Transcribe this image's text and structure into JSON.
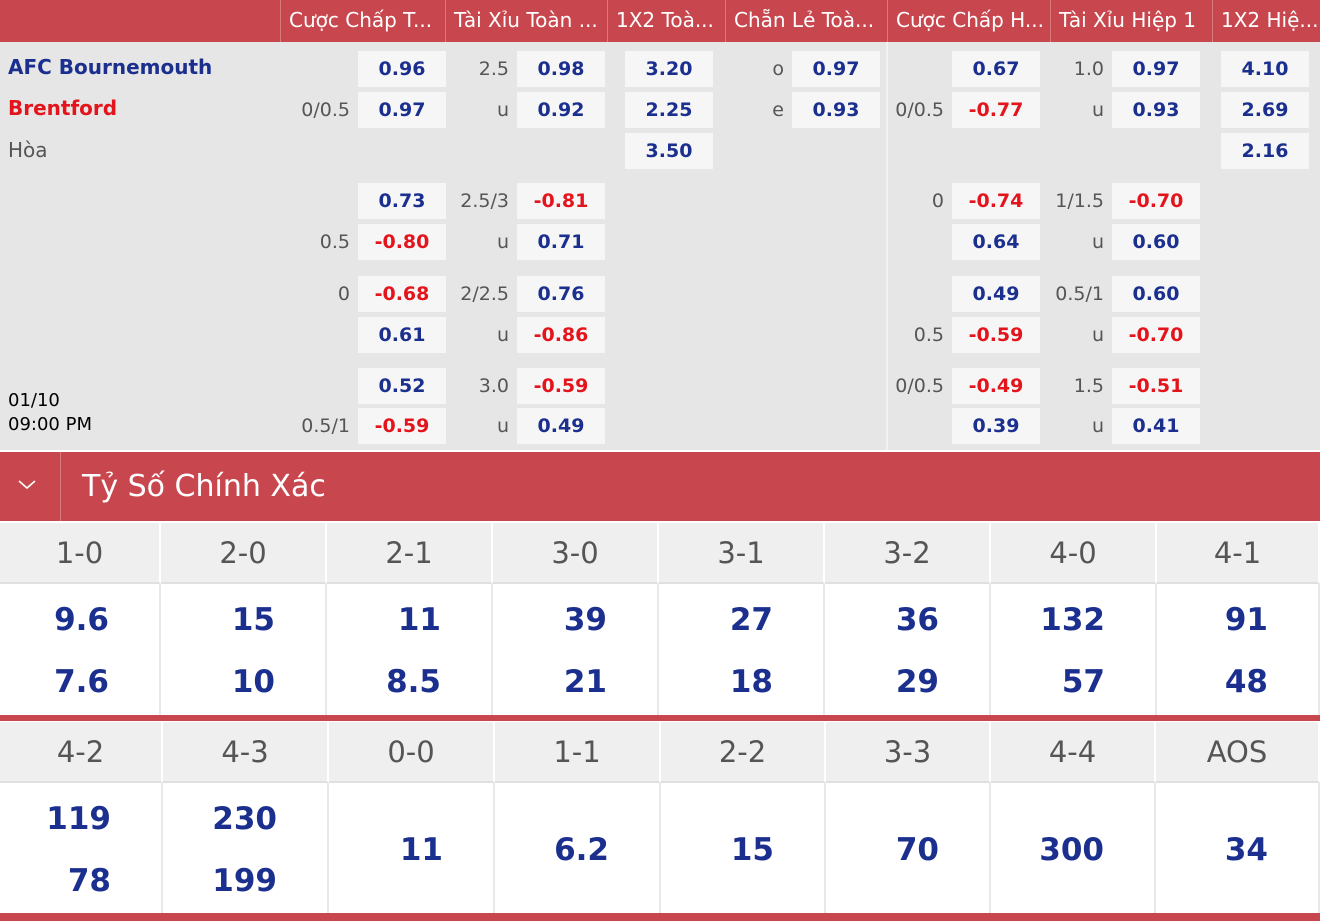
{
  "match": {
    "home": "AFC Bournemouth",
    "away": "Brentford",
    "draw": "Hòa",
    "date": "01/10",
    "time": "09:00 PM"
  },
  "odds": {
    "headers": [
      "Cược Chấp T...",
      "Tài Xỉu Toàn ...",
      "1X2 Toà...",
      "Chẵn Lẻ Toà...",
      "Cược Chấp H...",
      "Tài Xỉu Hiệp 1",
      "1X2 Hiệ..."
    ],
    "rows": [
      [
        {
          "odds": "0.96"
        },
        {
          "line": "2.5",
          "odds": "0.98"
        },
        {
          "odds": "3.20"
        },
        {
          "line": "o",
          "odds": "0.97"
        },
        {
          "odds": "0.67"
        },
        {
          "line": "1.0",
          "odds": "0.97"
        },
        {
          "odds": "4.10"
        }
      ],
      [
        {
          "line": "0/0.5",
          "odds": "0.97"
        },
        {
          "line": "u",
          "odds": "0.92"
        },
        {
          "odds": "2.25"
        },
        {
          "line": "e",
          "odds": "0.93"
        },
        {
          "line": "0/0.5",
          "odds": "-0.77"
        },
        {
          "line": "u",
          "odds": "0.93"
        },
        {
          "odds": "2.69"
        }
      ],
      [
        null,
        null,
        {
          "odds": "3.50"
        },
        null,
        null,
        null,
        {
          "odds": "2.16"
        }
      ],
      [
        {
          "odds": "0.73"
        },
        {
          "line": "2.5/3",
          "odds": "-0.81"
        },
        null,
        null,
        {
          "line": "0",
          "odds": "-0.74"
        },
        {
          "line": "1/1.5",
          "odds": "-0.70"
        },
        null
      ],
      [
        {
          "line": "0.5",
          "odds": "-0.80"
        },
        {
          "line": "u",
          "odds": "0.71"
        },
        null,
        null,
        {
          "odds": "0.64"
        },
        {
          "line": "u",
          "odds": "0.60"
        },
        null
      ],
      [
        {
          "line": "0",
          "odds": "-0.68"
        },
        {
          "line": "2/2.5",
          "odds": "0.76"
        },
        null,
        null,
        {
          "odds": "0.49"
        },
        {
          "line": "0.5/1",
          "odds": "0.60"
        },
        null
      ],
      [
        {
          "odds": "0.61"
        },
        {
          "line": "u",
          "odds": "-0.86"
        },
        null,
        null,
        {
          "line": "0.5",
          "odds": "-0.59"
        },
        {
          "line": "u",
          "odds": "-0.70"
        },
        null
      ],
      [
        {
          "odds": "0.52"
        },
        {
          "line": "3.0",
          "odds": "-0.59"
        },
        null,
        null,
        {
          "line": "0/0.5",
          "odds": "-0.49"
        },
        {
          "line": "1.5",
          "odds": "-0.51"
        },
        null
      ],
      [
        {
          "line": "0.5/1",
          "odds": "-0.59"
        },
        {
          "line": "u",
          "odds": "0.49"
        },
        null,
        null,
        {
          "odds": "0.39"
        },
        {
          "line": "u",
          "odds": "0.41"
        },
        null
      ]
    ]
  },
  "correct_score": {
    "title": "Tỷ Số Chính Xác",
    "tables": [
      [
        {
          "score": "1-0",
          "odds": [
            "9.6",
            "7.6"
          ]
        },
        {
          "score": "2-0",
          "odds": [
            "15",
            "10"
          ]
        },
        {
          "score": "2-1",
          "odds": [
            "11",
            "8.5"
          ]
        },
        {
          "score": "3-0",
          "odds": [
            "39",
            "21"
          ]
        },
        {
          "score": "3-1",
          "odds": [
            "27",
            "18"
          ]
        },
        {
          "score": "3-2",
          "odds": [
            "36",
            "29"
          ]
        },
        {
          "score": "4-0",
          "odds": [
            "132",
            "57"
          ]
        },
        {
          "score": "4-1",
          "odds": [
            "91",
            "48"
          ]
        }
      ],
      [
        {
          "score": "4-2",
          "odds": [
            "119",
            "78"
          ]
        },
        {
          "score": "4-3",
          "odds": [
            "230",
            "199"
          ]
        },
        {
          "score": "0-0",
          "odds": [
            "11"
          ]
        },
        {
          "score": "1-1",
          "odds": [
            "6.2"
          ]
        },
        {
          "score": "2-2",
          "odds": [
            "15"
          ]
        },
        {
          "score": "3-3",
          "odds": [
            "70"
          ]
        },
        {
          "score": "4-4",
          "odds": [
            "300"
          ]
        },
        {
          "score": "AOS",
          "odds": [
            "34"
          ]
        }
      ]
    ]
  }
}
